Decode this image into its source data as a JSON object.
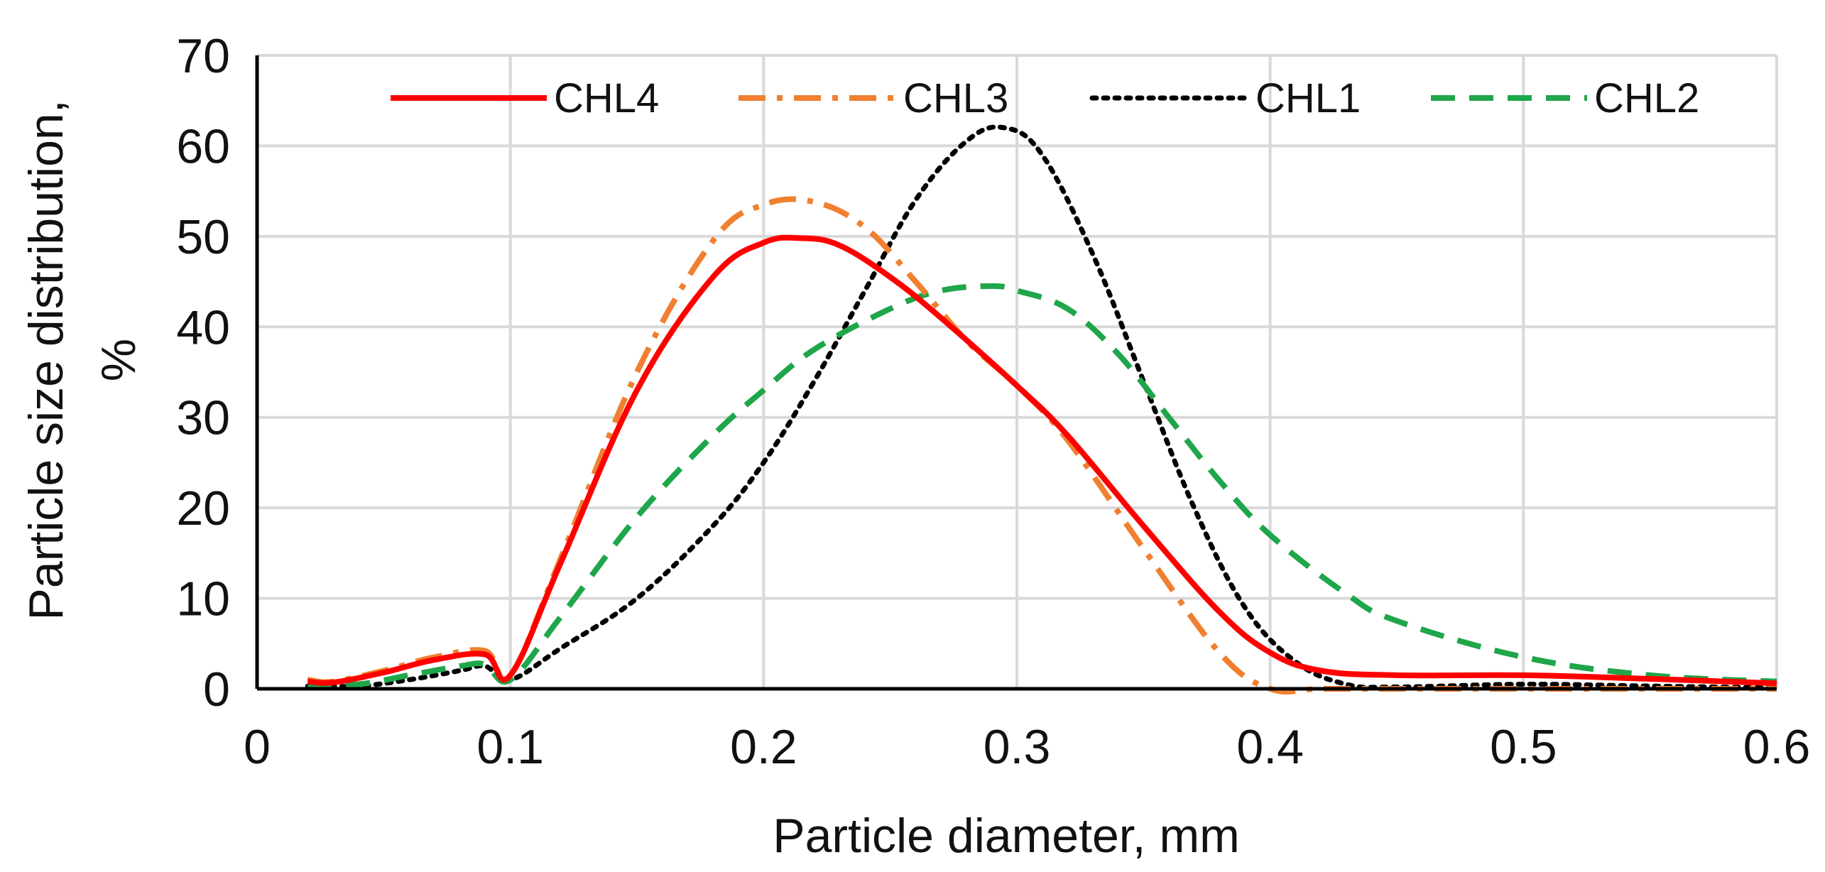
{
  "chart_data": {
    "type": "line",
    "title": "",
    "xlabel": "Particle diameter, mm",
    "ylabel_line1": "Particle size distribution,",
    "ylabel_line2": "%",
    "xlim": [
      0,
      0.6
    ],
    "ylim": [
      0,
      70
    ],
    "xticks": [
      0,
      0.1,
      0.2,
      0.3,
      0.4,
      0.5,
      0.6
    ],
    "xtick_labels": [
      "0",
      "0.1",
      "0.2",
      "0.3",
      "0.4",
      "0.5",
      "0.6"
    ],
    "yticks": [
      0,
      10,
      20,
      30,
      40,
      50,
      60,
      70
    ],
    "ytick_labels": [
      "0",
      "10",
      "20",
      "30",
      "40",
      "50",
      "60",
      "70"
    ],
    "grid": true,
    "legend_position": "top",
    "series": [
      {
        "name": "CHL4",
        "color": "#ff0000",
        "style": "solid",
        "x": [
          0.02,
          0.03,
          0.05,
          0.07,
          0.09,
          0.1,
          0.12,
          0.15,
          0.18,
          0.2,
          0.215,
          0.23,
          0.25,
          0.27,
          0.3,
          0.32,
          0.35,
          0.38,
          0.4,
          0.42,
          0.45,
          0.5,
          0.55,
          0.6
        ],
        "y": [
          0.8,
          0.7,
          1.8,
          3.2,
          3.8,
          1.5,
          14,
          33,
          45.5,
          49.3,
          49.8,
          49,
          45.5,
          41,
          33.5,
          28,
          18,
          8.5,
          4,
          2,
          1.5,
          1.5,
          1.1,
          0.6
        ]
      },
      {
        "name": "CHL3",
        "color": "#f08030",
        "style": "dashdot",
        "x": [
          0.02,
          0.03,
          0.05,
          0.07,
          0.09,
          0.1,
          0.12,
          0.15,
          0.18,
          0.2,
          0.22,
          0.24,
          0.26,
          0.28,
          0.3,
          0.32,
          0.35,
          0.38,
          0.4,
          0.42,
          0.45,
          0.5,
          0.55,
          0.6
        ],
        "y": [
          1.0,
          0.8,
          2.0,
          3.5,
          4.2,
          1.5,
          14.5,
          35,
          49.5,
          53.5,
          53.8,
          51,
          45,
          38.5,
          33.5,
          27.5,
          15.5,
          4,
          0,
          0,
          0,
          0,
          0,
          0
        ]
      },
      {
        "name": "CHL1",
        "color": "#000000",
        "style": "dotted",
        "x": [
          0.02,
          0.04,
          0.06,
          0.08,
          0.09,
          0.1,
          0.12,
          0.15,
          0.18,
          0.2,
          0.22,
          0.24,
          0.26,
          0.28,
          0.295,
          0.31,
          0.33,
          0.35,
          0.37,
          0.39,
          0.41,
          0.43,
          0.45,
          0.5,
          0.55,
          0.6
        ],
        "y": [
          0.3,
          0.3,
          1.0,
          2.0,
          2.5,
          1.0,
          4.5,
          10,
          18,
          25,
          34,
          44,
          54,
          60.5,
          62,
          59,
          48,
          34,
          20,
          9,
          3,
          0.5,
          0.2,
          0.5,
          0.3,
          0.1
        ]
      },
      {
        "name": "CHL2",
        "color": "#1fa64a",
        "style": "dashed",
        "x": [
          0.02,
          0.04,
          0.06,
          0.08,
          0.09,
          0.1,
          0.12,
          0.15,
          0.18,
          0.2,
          0.22,
          0.25,
          0.27,
          0.29,
          0.3,
          0.32,
          0.34,
          0.36,
          0.38,
          0.4,
          0.43,
          0.45,
          0.5,
          0.55,
          0.6
        ],
        "y": [
          0.5,
          0.5,
          1.5,
          2.5,
          2.7,
          1.0,
          8,
          19,
          28,
          33,
          37.5,
          42,
          44,
          44.5,
          44,
          42,
          37,
          30,
          23,
          17,
          10.5,
          7.5,
          3.5,
          1.5,
          0.8
        ]
      }
    ]
  }
}
